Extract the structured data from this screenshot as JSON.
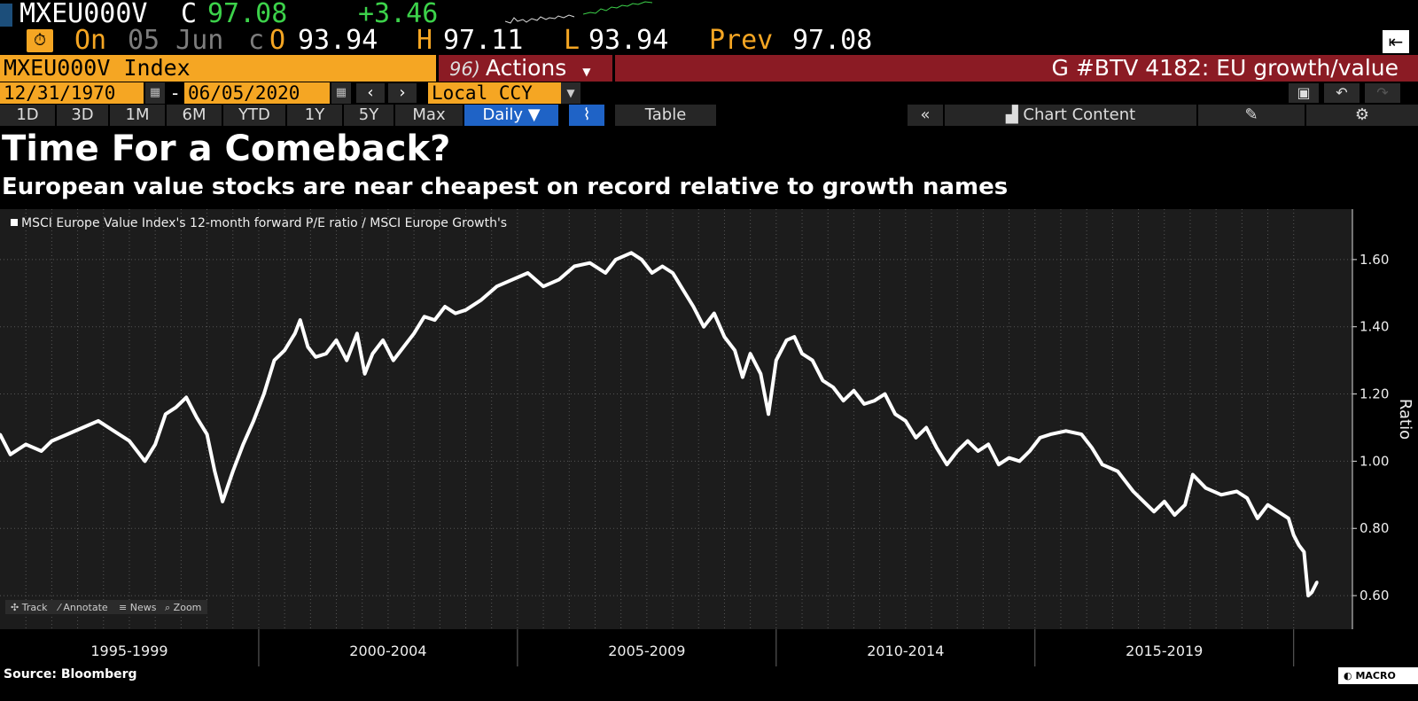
{
  "quote": {
    "ticker": "MXEU000V",
    "close_tag": "C",
    "close": "97.08",
    "change": "+3.46",
    "on_label": "On",
    "date": "05 Jun",
    "c_label": "c",
    "open_label": "O",
    "open": "93.94",
    "high_label": "H",
    "high": "97.11",
    "low_label": "L",
    "low": "93.94",
    "prev_label": "Prev",
    "prev": "97.08",
    "colors": {
      "up": "#3cd24a",
      "accent": "#f5a623"
    }
  },
  "command": {
    "security": "MXEU000V Index",
    "actions_num": "96)",
    "actions_label": "Actions",
    "title": "G #BTV 4182: EU growth/value"
  },
  "dates": {
    "start": "12/31/1970",
    "end": "06/05/2020",
    "currency": "Local CCY"
  },
  "tabs": {
    "ranges": [
      "1D",
      "3D",
      "1M",
      "6M",
      "YTD",
      "1Y",
      "5Y",
      "Max"
    ],
    "frequency": "Daily",
    "table": "Table",
    "chart_content": "Chart Content"
  },
  "headline": "Time For a Comeback?",
  "subheadline": "European value stocks are near cheapest on record relative to growth names",
  "chart_tools": [
    "Track",
    "Annotate",
    "News",
    "Zoom"
  ],
  "chart_data": {
    "type": "line",
    "legend": "MSCI Europe Value Index's 12-month forward P/E ratio / MSCI Europe Growth's",
    "ylabel": "Ratio",
    "ylim": [
      0.5,
      1.75
    ],
    "yticks": [
      "1.60",
      "1.40",
      "1.20",
      "1.00",
      "0.80",
      "0.60"
    ],
    "x_periods": [
      "1995-1999",
      "2000-2004",
      "2005-2009",
      "2010-2014",
      "2015-2019"
    ],
    "x_range": [
      1995.0,
      2020.45
    ],
    "series": [
      {
        "color": "#ffffff",
        "points": [
          [
            1995.0,
            1.08
          ],
          [
            1995.2,
            1.02
          ],
          [
            1995.5,
            1.05
          ],
          [
            1995.8,
            1.03
          ],
          [
            1996.0,
            1.06
          ],
          [
            1996.3,
            1.08
          ],
          [
            1996.6,
            1.1
          ],
          [
            1996.9,
            1.12
          ],
          [
            1997.2,
            1.09
          ],
          [
            1997.5,
            1.06
          ],
          [
            1997.8,
            1.0
          ],
          [
            1998.0,
            1.05
          ],
          [
            1998.2,
            1.14
          ],
          [
            1998.4,
            1.16
          ],
          [
            1998.6,
            1.19
          ],
          [
            1998.8,
            1.13
          ],
          [
            1999.0,
            1.08
          ],
          [
            1999.15,
            0.97
          ],
          [
            1999.3,
            0.88
          ],
          [
            1999.5,
            0.97
          ],
          [
            1999.7,
            1.05
          ],
          [
            1999.9,
            1.12
          ],
          [
            2000.1,
            1.2
          ],
          [
            2000.3,
            1.3
          ],
          [
            2000.5,
            1.33
          ],
          [
            2000.7,
            1.38
          ],
          [
            2000.8,
            1.42
          ],
          [
            2000.95,
            1.34
          ],
          [
            2001.1,
            1.31
          ],
          [
            2001.3,
            1.32
          ],
          [
            2001.5,
            1.36
          ],
          [
            2001.7,
            1.3
          ],
          [
            2001.9,
            1.38
          ],
          [
            2002.05,
            1.26
          ],
          [
            2002.2,
            1.32
          ],
          [
            2002.4,
            1.36
          ],
          [
            2002.6,
            1.3
          ],
          [
            2002.8,
            1.34
          ],
          [
            2003.0,
            1.38
          ],
          [
            2003.2,
            1.43
          ],
          [
            2003.4,
            1.42
          ],
          [
            2003.6,
            1.46
          ],
          [
            2003.8,
            1.44
          ],
          [
            2004.0,
            1.45
          ],
          [
            2004.3,
            1.48
          ],
          [
            2004.6,
            1.52
          ],
          [
            2004.9,
            1.54
          ],
          [
            2005.2,
            1.56
          ],
          [
            2005.5,
            1.52
          ],
          [
            2005.8,
            1.54
          ],
          [
            2006.1,
            1.58
          ],
          [
            2006.4,
            1.59
          ],
          [
            2006.7,
            1.56
          ],
          [
            2006.9,
            1.6
          ],
          [
            2007.2,
            1.62
          ],
          [
            2007.4,
            1.6
          ],
          [
            2007.6,
            1.56
          ],
          [
            2007.8,
            1.58
          ],
          [
            2008.0,
            1.56
          ],
          [
            2008.2,
            1.51
          ],
          [
            2008.4,
            1.46
          ],
          [
            2008.6,
            1.4
          ],
          [
            2008.8,
            1.44
          ],
          [
            2009.0,
            1.37
          ],
          [
            2009.2,
            1.33
          ],
          [
            2009.35,
            1.25
          ],
          [
            2009.5,
            1.32
          ],
          [
            2009.7,
            1.26
          ],
          [
            2009.85,
            1.14
          ],
          [
            2010.0,
            1.3
          ],
          [
            2010.2,
            1.36
          ],
          [
            2010.35,
            1.37
          ],
          [
            2010.5,
            1.32
          ],
          [
            2010.7,
            1.3
          ],
          [
            2010.9,
            1.24
          ],
          [
            2011.1,
            1.22
          ],
          [
            2011.3,
            1.18
          ],
          [
            2011.5,
            1.21
          ],
          [
            2011.7,
            1.17
          ],
          [
            2011.9,
            1.18
          ],
          [
            2012.1,
            1.2
          ],
          [
            2012.3,
            1.14
          ],
          [
            2012.5,
            1.12
          ],
          [
            2012.7,
            1.07
          ],
          [
            2012.9,
            1.1
          ],
          [
            2013.1,
            1.04
          ],
          [
            2013.3,
            0.99
          ],
          [
            2013.5,
            1.03
          ],
          [
            2013.7,
            1.06
          ],
          [
            2013.9,
            1.03
          ],
          [
            2014.1,
            1.05
          ],
          [
            2014.3,
            0.99
          ],
          [
            2014.5,
            1.01
          ],
          [
            2014.7,
            1.0
          ],
          [
            2014.9,
            1.03
          ],
          [
            2015.1,
            1.07
          ],
          [
            2015.3,
            1.08
          ],
          [
            2015.6,
            1.09
          ],
          [
            2015.9,
            1.08
          ],
          [
            2016.1,
            1.04
          ],
          [
            2016.3,
            0.99
          ],
          [
            2016.6,
            0.97
          ],
          [
            2016.9,
            0.91
          ],
          [
            2017.1,
            0.88
          ],
          [
            2017.3,
            0.85
          ],
          [
            2017.5,
            0.88
          ],
          [
            2017.7,
            0.84
          ],
          [
            2017.9,
            0.87
          ],
          [
            2018.05,
            0.96
          ],
          [
            2018.3,
            0.92
          ],
          [
            2018.6,
            0.9
          ],
          [
            2018.9,
            0.91
          ],
          [
            2019.1,
            0.89
          ],
          [
            2019.3,
            0.83
          ],
          [
            2019.5,
            0.87
          ],
          [
            2019.7,
            0.85
          ],
          [
            2019.9,
            0.83
          ],
          [
            2020.0,
            0.78
          ],
          [
            2020.1,
            0.75
          ],
          [
            2020.2,
            0.73
          ],
          [
            2020.28,
            0.6
          ],
          [
            2020.35,
            0.61
          ],
          [
            2020.45,
            0.64
          ]
        ]
      }
    ]
  },
  "footer": {
    "source": "Source: Bloomberg",
    "logo": "MACRO OPS"
  }
}
